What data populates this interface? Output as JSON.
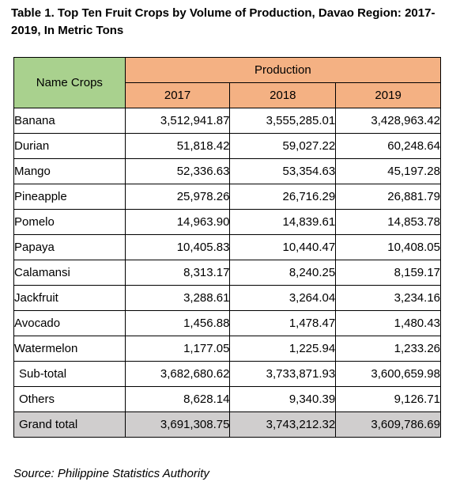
{
  "title": "Table 1. Top Ten Fruit Crops by Volume of Production, Davao Region: 2017-2019, In Metric Tons",
  "table": {
    "name_header": "Name Crops",
    "production_header": "Production",
    "years": [
      "2017",
      "2018",
      "2019"
    ],
    "rows": [
      {
        "name": "Banana",
        "v2017": "3,512,941.87",
        "v2018": "3,555,285.01",
        "v2019": "3,428,963.42"
      },
      {
        "name": "Durian",
        "v2017": "51,818.42",
        "v2018": "59,027.22",
        "v2019": "60,248.64"
      },
      {
        "name": "Mango",
        "v2017": "52,336.63",
        "v2018": "53,354.63",
        "v2019": "45,197.28"
      },
      {
        "name": "Pineapple",
        "v2017": "25,978.26",
        "v2018": "26,716.29",
        "v2019": "26,881.79"
      },
      {
        "name": "Pomelo",
        "v2017": "14,963.90",
        "v2018": "14,839.61",
        "v2019": "14,853.78"
      },
      {
        "name": "Papaya",
        "v2017": "10,405.83",
        "v2018": "10,440.47",
        "v2019": "10,408.05"
      },
      {
        "name": "Calamansi",
        "v2017": "8,313.17",
        "v2018": "8,240.25",
        "v2019": "8,159.17"
      },
      {
        "name": "Jackfruit",
        "v2017": "3,288.61",
        "v2018": "3,264.04",
        "v2019": "3,234.16"
      },
      {
        "name": "Avocado",
        "v2017": "1,456.88",
        "v2018": "1,478.47",
        "v2019": "1,480.43"
      },
      {
        "name": "Watermelon",
        "v2017": "1,177.05",
        "v2018": "1,225.94",
        "v2019": "1,233.26"
      }
    ],
    "subtotal": {
      "name": "Sub-total",
      "v2017": "3,682,680.62",
      "v2018": "3,733,871.93",
      "v2019": "3,600,659.98"
    },
    "others": {
      "name": "Others",
      "v2017": "8,628.14",
      "v2018": "9,340.39",
      "v2019": "9,126.71"
    },
    "grand_total": {
      "name": "Grand total",
      "v2017": "3,691,308.75",
      "v2018": "3,743,212.32",
      "v2019": "3,609,786.69"
    }
  },
  "source": "Source: Philippine Statistics Authority",
  "colors": {
    "name_header_bg": "#a9d18e",
    "production_header_bg": "#f4b183",
    "grand_total_bg": "#d0cece"
  }
}
